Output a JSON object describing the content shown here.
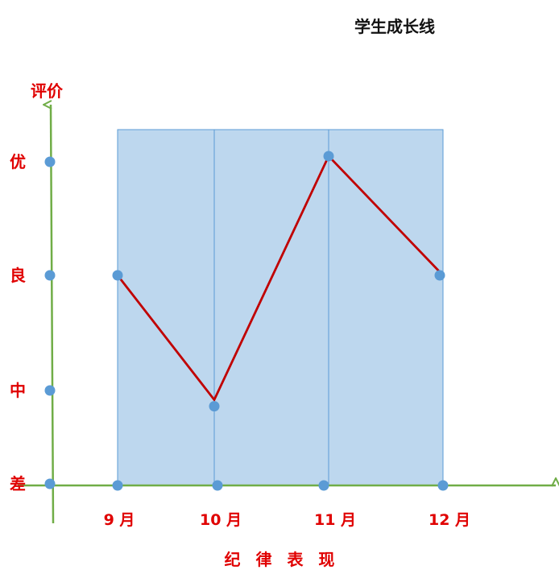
{
  "colors": {
    "axis": "#70ad47",
    "label": "#e00000",
    "line": "#c00000",
    "marker": "#5b9bd5",
    "panel_fill": "#bdd7ee",
    "panel_border": "#5b9bd5",
    "title": "#111111"
  },
  "chart_data": {
    "type": "line",
    "title": "学生成长线",
    "ylabel": "评价",
    "xlabel": "纪 律 表 现",
    "categories": [
      "9 月",
      "10 月",
      "11 月",
      "12 月"
    ],
    "y_levels": [
      "差",
      "中",
      "良",
      "优"
    ],
    "series": [
      {
        "values": [
          2,
          0.9,
          3.05,
          2
        ]
      }
    ],
    "ylim": [
      0,
      3
    ],
    "grid": false,
    "legend": "none"
  }
}
